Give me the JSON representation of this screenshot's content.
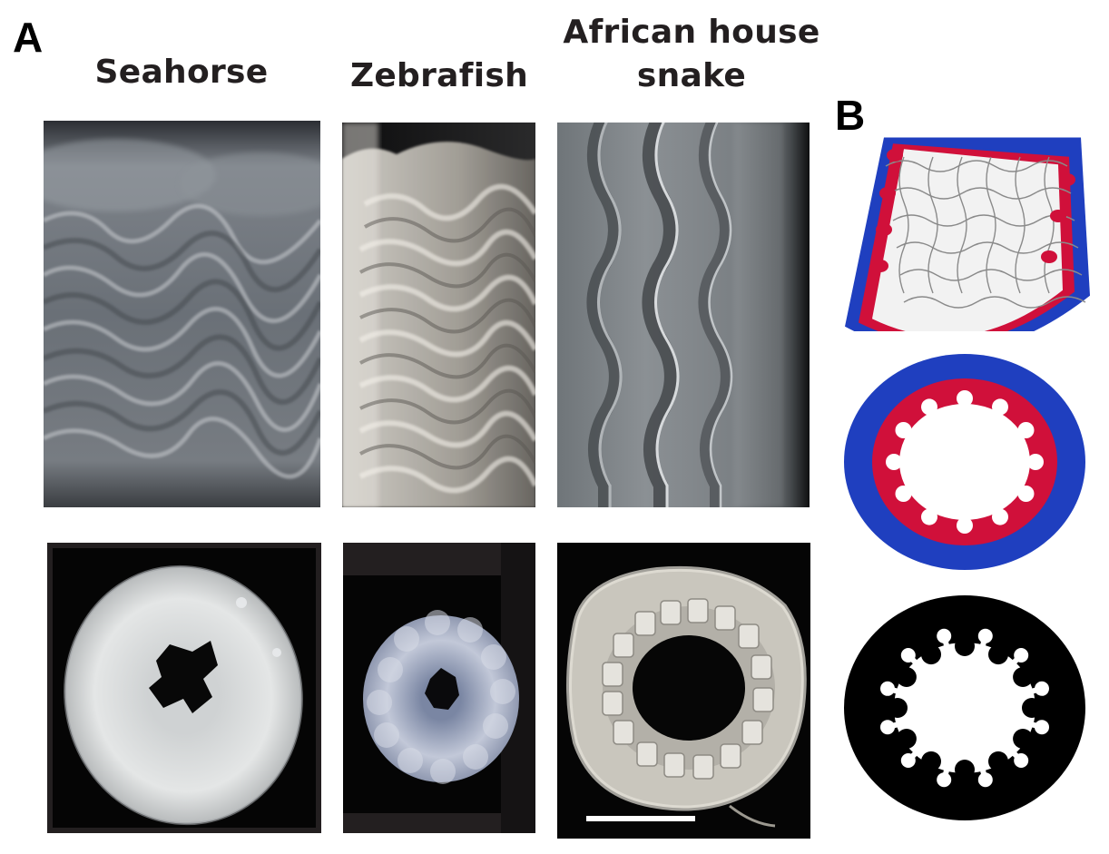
{
  "panel_a": {
    "letter": "A",
    "columns": [
      {
        "title_lines": [
          "Seahorse"
        ]
      },
      {
        "title_lines": [
          "Zebrafish"
        ]
      },
      {
        "title_lines": [
          "African house",
          "snake"
        ]
      }
    ]
  },
  "panel_b": {
    "letter": "B"
  },
  "colors": {
    "outer_layer": "#1f3fbf",
    "inner_layer": "#d0103a",
    "lumen_surface": "#f2f2f2",
    "binary_tissue": "#000000"
  }
}
